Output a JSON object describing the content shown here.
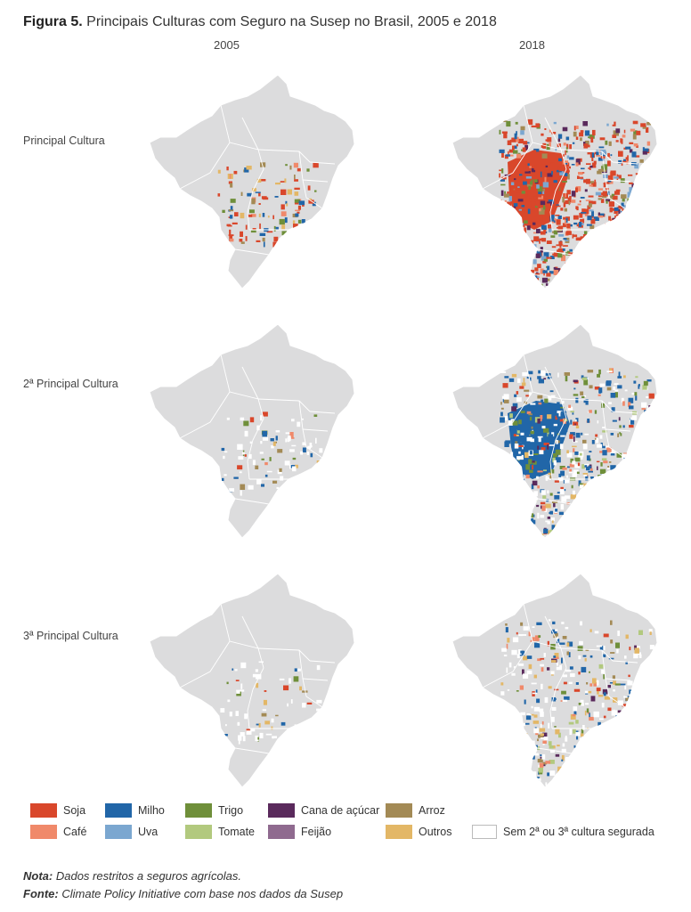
{
  "figure": {
    "label": "Figura 5.",
    "title": "Principais Culturas com Seguro na Susep no Brasil, 2005 e 2018"
  },
  "columns": [
    "2005",
    "2018"
  ],
  "rows": [
    "Principal Cultura",
    "2ª Principal Cultura",
    "3ª Principal Cultura"
  ],
  "legend": [
    {
      "label": "Soja",
      "color": "#d9472b"
    },
    {
      "label": "Café",
      "color": "#f0896a"
    },
    {
      "label": "Milho",
      "color": "#2166a8"
    },
    {
      "label": "Uva",
      "color": "#7ba7d0"
    },
    {
      "label": "Trigo",
      "color": "#6f8f3a"
    },
    {
      "label": "Tomate",
      "color": "#b2c97e"
    },
    {
      "label": "Cana de açúcar",
      "color": "#5a2a5c"
    },
    {
      "label": "Feijão",
      "color": "#8f6a8f"
    },
    {
      "label": "Arroz",
      "color": "#a38a55"
    },
    {
      "label": "Outros",
      "color": "#e3b766"
    },
    {
      "label": "Sem 2ª ou 3ª cultura segurada",
      "color": "#ffffff"
    }
  ],
  "notes": {
    "nota_label": "Nota:",
    "nota_text": "Dados restritos a seguros agrícolas.",
    "fonte_label": "Fonte:",
    "fonte_text": "Climate Policy Initiative com base nos dados da Susep"
  },
  "colors": {
    "base_map": "#dcdcdd",
    "borders": "#ffffff"
  }
}
